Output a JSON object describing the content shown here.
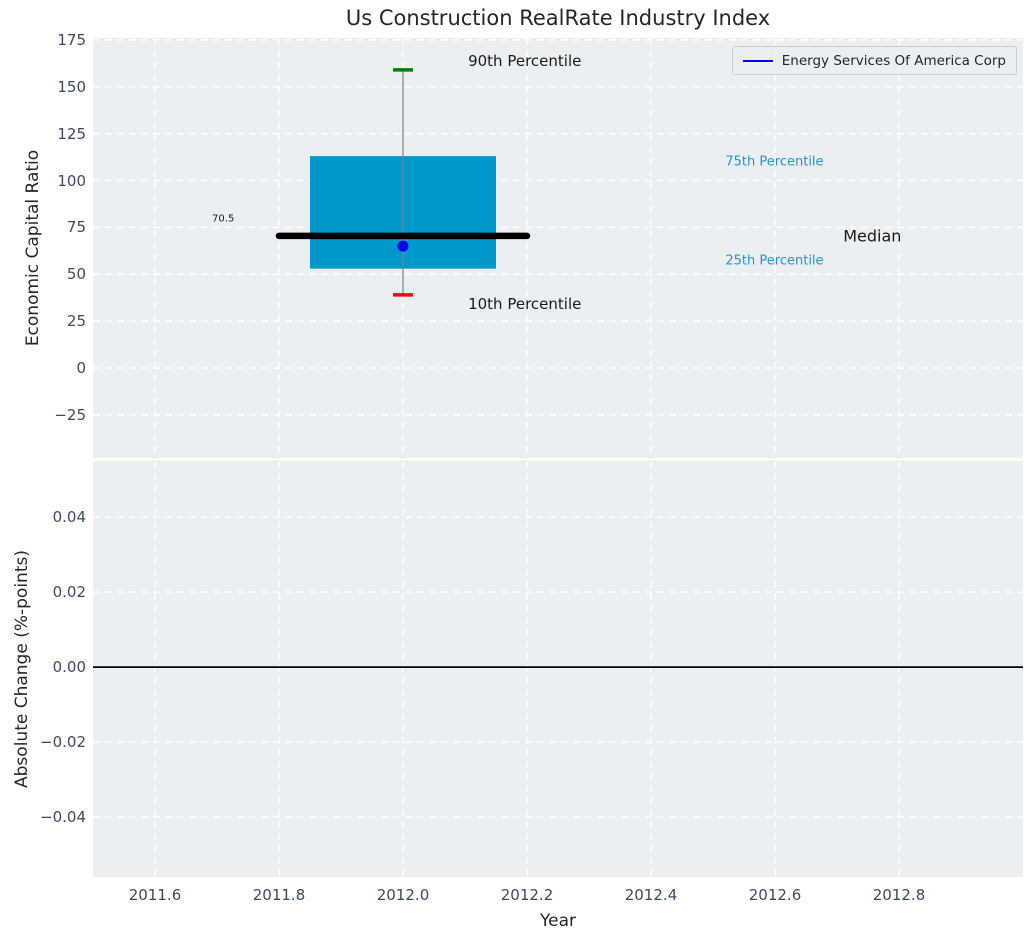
{
  "title": "Us Construction RealRate Industry Index",
  "legend": {
    "label": "Energy Services Of America Corp",
    "line_color": "#0000ee"
  },
  "x_axis": {
    "label": "Year",
    "range": [
      2011.5,
      2013.0
    ],
    "ticks": [
      {
        "value": 2011.6,
        "label": "2011.6"
      },
      {
        "value": 2011.8,
        "label": "2011.8"
      },
      {
        "value": 2012.0,
        "label": "2012.0"
      },
      {
        "value": 2012.2,
        "label": "2012.2"
      },
      {
        "value": 2012.4,
        "label": "2012.4"
      },
      {
        "value": 2012.6,
        "label": "2012.6"
      },
      {
        "value": 2012.8,
        "label": "2012.8"
      }
    ]
  },
  "style": {
    "plot_background": "#eceff1",
    "grid_color": "#ffffff",
    "tick_label_color": "#3c4962",
    "text_color": "#262626"
  },
  "chart_data": [
    {
      "type": "boxplot",
      "title": "Us Construction RealRate Industry Index",
      "ylabel": "Economic Capital Ratio",
      "ylim": [
        -48,
        176
      ],
      "grid": true,
      "yticks": [
        {
          "value": 175,
          "label": "175"
        },
        {
          "value": 150,
          "label": "150"
        },
        {
          "value": 125,
          "label": "125"
        },
        {
          "value": 100,
          "label": "100"
        },
        {
          "value": 75,
          "label": "75"
        },
        {
          "value": 50,
          "label": "50"
        },
        {
          "value": 25,
          "label": "25"
        },
        {
          "value": 0,
          "label": "0"
        },
        {
          "value": -25,
          "label": "−25"
        }
      ],
      "box": {
        "x": 2012.0,
        "p10": 39,
        "p25": 53,
        "median": 70.5,
        "p75": 113,
        "p90": 159,
        "median_label": "70.5",
        "box_halfwidth_years": 0.15,
        "median_halfwidth_years": 0.2,
        "box_color": "#0099cc",
        "whisker_color": "#808080",
        "p90_cap_color": "#008000",
        "p10_cap_color": "#ff0000",
        "median_color": "#000000"
      },
      "company_point": {
        "name": "Energy Services Of America Corp",
        "x": 2012.0,
        "y": 65,
        "color": "#0000ee"
      },
      "annotations": [
        {
          "id": "90th-percentile",
          "text": "90th Percentile",
          "x": 2012.105,
          "y": 163.5,
          "color": "#1a1a1a",
          "size": 15,
          "anchor": "start"
        },
        {
          "id": "10th-percentile",
          "text": "10th Percentile",
          "x": 2012.105,
          "y": 34,
          "color": "#1a1a1a",
          "size": 15,
          "anchor": "start"
        },
        {
          "id": "75th-percentile",
          "text": "75th Percentile",
          "x": 2012.52,
          "y": 110,
          "color": "#2295cc",
          "size": 13,
          "anchor": "start"
        },
        {
          "id": "25th-percentile",
          "text": "25th Percentile",
          "x": 2012.52,
          "y": 57,
          "color": "#2295cc",
          "size": 13,
          "anchor": "start"
        },
        {
          "id": "median",
          "text": "Median",
          "x": 2012.71,
          "y": 70.5,
          "color": "#1a1a1a",
          "size": 16,
          "anchor": "start"
        },
        {
          "id": "median-value",
          "text": "70.5",
          "x": 2011.71,
          "y": 79.3,
          "color": "#1a1a1a",
          "size": 10,
          "anchor": "middle"
        }
      ]
    },
    {
      "type": "line",
      "ylabel": "Absolute Change (%-points)",
      "xlabel": "Year",
      "ylim": [
        -0.056,
        0.055
      ],
      "grid": true,
      "yticks": [
        {
          "value": 0.04,
          "label": "0.04"
        },
        {
          "value": 0.02,
          "label": "0.02"
        },
        {
          "value": 0.0,
          "label": "0.00"
        },
        {
          "value": -0.02,
          "label": "−0.02"
        },
        {
          "value": -0.04,
          "label": "−0.04"
        }
      ],
      "zero_line": 0.0,
      "zero_line_color": "#000000",
      "series": []
    }
  ]
}
